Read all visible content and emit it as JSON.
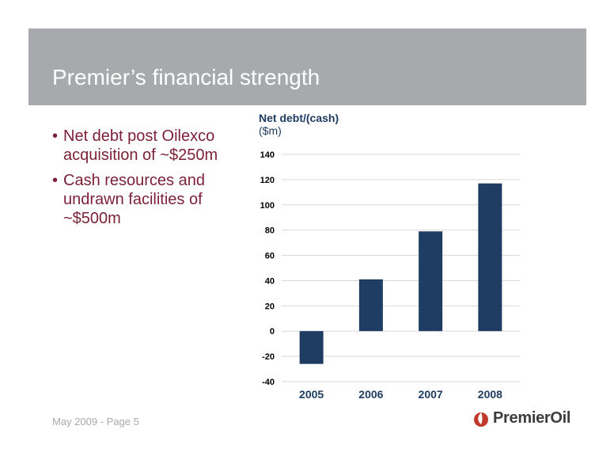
{
  "slide": {
    "title": "Premier’s financial strength",
    "bullets": [
      {
        "lines": [
          "Net debt post Oilexco",
          "acquisition of ~$250m"
        ]
      },
      {
        "lines": [
          "Cash resources and",
          "undrawn facilities of",
          "~$500m"
        ]
      }
    ],
    "footer": "May 2009 - Page 5",
    "logo_text": "PremierOil",
    "colors": {
      "title_bar": "#a7a9ac",
      "bullet_text": "#7b1f36",
      "bar": "#1f3c62",
      "logo_red": "#c0392b"
    }
  },
  "chart_data": {
    "type": "bar",
    "title": "Net debt/(cash)",
    "unit": "($m)",
    "categories": [
      "2005",
      "2006",
      "2007",
      "2008"
    ],
    "values": [
      -26,
      41,
      79,
      117
    ],
    "ylim": [
      -40,
      140
    ],
    "yticks": [
      140,
      120,
      100,
      80,
      60,
      40,
      20,
      0,
      -20,
      -40
    ],
    "grid": true
  }
}
